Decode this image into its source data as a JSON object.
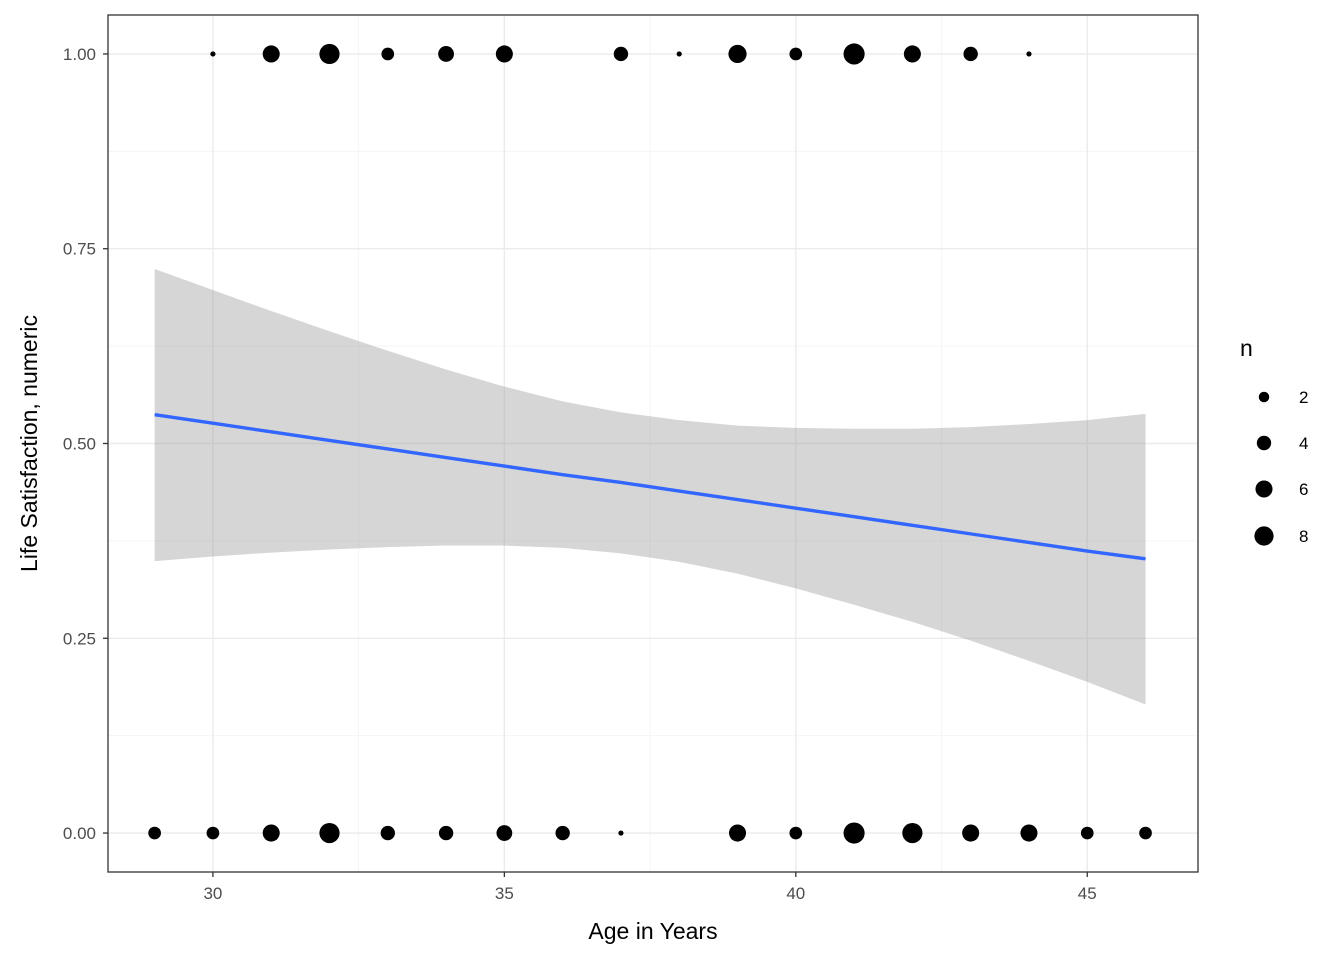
{
  "chart_data": {
    "type": "scatter",
    "xlabel": "Age in Years",
    "ylabel": "Life Satisfaction, numeric",
    "xlim": [
      28.2,
      46.9
    ],
    "ylim": [
      -0.05,
      1.05
    ],
    "x_ticks": [
      30,
      35,
      40,
      45
    ],
    "x_tick_labels": [
      "30",
      "35",
      "40",
      "45"
    ],
    "y_ticks": [
      0,
      0.25,
      0.5,
      0.75,
      1.0
    ],
    "y_tick_labels": [
      "0.00",
      "0.25",
      "0.50",
      "0.75",
      "1.00"
    ],
    "grid": true,
    "size_legend": {
      "title": "n",
      "position": "right",
      "entries": [
        {
          "label": "2",
          "n": 2
        },
        {
          "label": "4",
          "n": 4
        },
        {
          "label": "6",
          "n": 6
        },
        {
          "label": "8",
          "n": 8
        }
      ]
    },
    "points": [
      {
        "x": 30,
        "y": 1,
        "n": 1
      },
      {
        "x": 31,
        "y": 1,
        "n": 6
      },
      {
        "x": 32,
        "y": 1,
        "n": 9
      },
      {
        "x": 33,
        "y": 1,
        "n": 3
      },
      {
        "x": 34,
        "y": 1,
        "n": 5
      },
      {
        "x": 35,
        "y": 1,
        "n": 6
      },
      {
        "x": 37,
        "y": 1,
        "n": 4
      },
      {
        "x": 38,
        "y": 1,
        "n": 1
      },
      {
        "x": 39,
        "y": 1,
        "n": 7
      },
      {
        "x": 40,
        "y": 1,
        "n": 3
      },
      {
        "x": 41,
        "y": 1,
        "n": 10
      },
      {
        "x": 42,
        "y": 1,
        "n": 6
      },
      {
        "x": 43,
        "y": 1,
        "n": 4
      },
      {
        "x": 44,
        "y": 1,
        "n": 1
      },
      {
        "x": 29,
        "y": 0,
        "n": 3
      },
      {
        "x": 30,
        "y": 0,
        "n": 3
      },
      {
        "x": 31,
        "y": 0,
        "n": 6
      },
      {
        "x": 32,
        "y": 0,
        "n": 9
      },
      {
        "x": 33,
        "y": 0,
        "n": 4
      },
      {
        "x": 34,
        "y": 0,
        "n": 4
      },
      {
        "x": 35,
        "y": 0,
        "n": 5
      },
      {
        "x": 36,
        "y": 0,
        "n": 4
      },
      {
        "x": 37,
        "y": 0,
        "n": 1
      },
      {
        "x": 39,
        "y": 0,
        "n": 6
      },
      {
        "x": 40,
        "y": 0,
        "n": 3
      },
      {
        "x": 41,
        "y": 0,
        "n": 10
      },
      {
        "x": 42,
        "y": 0,
        "n": 9
      },
      {
        "x": 43,
        "y": 0,
        "n": 6
      },
      {
        "x": 44,
        "y": 0,
        "n": 6
      },
      {
        "x": 45,
        "y": 0,
        "n": 3
      },
      {
        "x": 46,
        "y": 0,
        "n": 3
      }
    ],
    "smooth": {
      "color": "#3366ff",
      "band_color": "#999999",
      "x": [
        29,
        30,
        31,
        32,
        33,
        34,
        35,
        36,
        37,
        38,
        39,
        40,
        41,
        42,
        43,
        44,
        45,
        46
      ],
      "fit": [
        0.537,
        0.526,
        0.515,
        0.504,
        0.493,
        0.482,
        0.471,
        0.46,
        0.45,
        0.439,
        0.428,
        0.417,
        0.406,
        0.395,
        0.384,
        0.373,
        0.362,
        0.352
      ],
      "lower": [
        0.349,
        0.355,
        0.36,
        0.364,
        0.367,
        0.369,
        0.369,
        0.366,
        0.359,
        0.348,
        0.333,
        0.314,
        0.293,
        0.271,
        0.247,
        0.221,
        0.194,
        0.165
      ],
      "upper": [
        0.724,
        0.697,
        0.67,
        0.644,
        0.619,
        0.595,
        0.573,
        0.554,
        0.54,
        0.53,
        0.523,
        0.52,
        0.519,
        0.519,
        0.521,
        0.525,
        0.53,
        0.538
      ]
    },
    "colors": {
      "panel_border": "#333333",
      "grid_major": "#ebebeb",
      "grid_minor": "#f5f5f5",
      "point": "#000000"
    }
  }
}
